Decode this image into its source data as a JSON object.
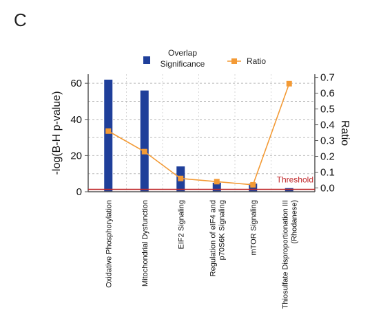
{
  "panel_label": "C",
  "colors": {
    "bar": "#1f3f9a",
    "ratio": "#f39a35",
    "threshold": "#c0282b",
    "axis": "#555555",
    "grid": "#bbbbbb"
  },
  "chart_data": {
    "type": "bar",
    "categories": [
      [
        "Oxidative Phosphorylation"
      ],
      [
        "Mitochondrial Dysfunction"
      ],
      [
        "EIF2 Signaling"
      ],
      [
        "Regulation of eIF4 and",
        "p70S6K Signaling"
      ],
      [
        "mTOR Signaling"
      ],
      [
        "Thiosulfate Disproportionation III",
        "(Rhodanese)"
      ]
    ],
    "series": [
      {
        "name": "Overlap Significance",
        "axis": "left",
        "kind": "bar",
        "values": [
          62,
          56,
          14,
          5,
          4.5,
          2
        ]
      },
      {
        "name": "Ratio",
        "axis": "right",
        "kind": "line",
        "values": [
          0.36,
          0.23,
          0.06,
          0.04,
          0.02,
          0.66
        ]
      }
    ],
    "legend": {
      "series_lines": [
        [
          "Overlap",
          "Significance"
        ],
        [
          "Ratio"
        ]
      ],
      "position": "top"
    },
    "ylabel": "-log(B-H p-value)",
    "ylim": [
      0,
      65
    ],
    "yticks": [
      0,
      20,
      40,
      60
    ],
    "y2label": "Ratio",
    "y2lim": [
      0,
      0.72
    ],
    "y2ticks": [
      "0.0",
      "0.1",
      "0.2",
      "0.3",
      "0.4",
      "0.5",
      "0.6",
      "0.7"
    ],
    "threshold": {
      "label": "Threshold",
      "value": 1.3
    },
    "grid": "horizontal dashed"
  }
}
